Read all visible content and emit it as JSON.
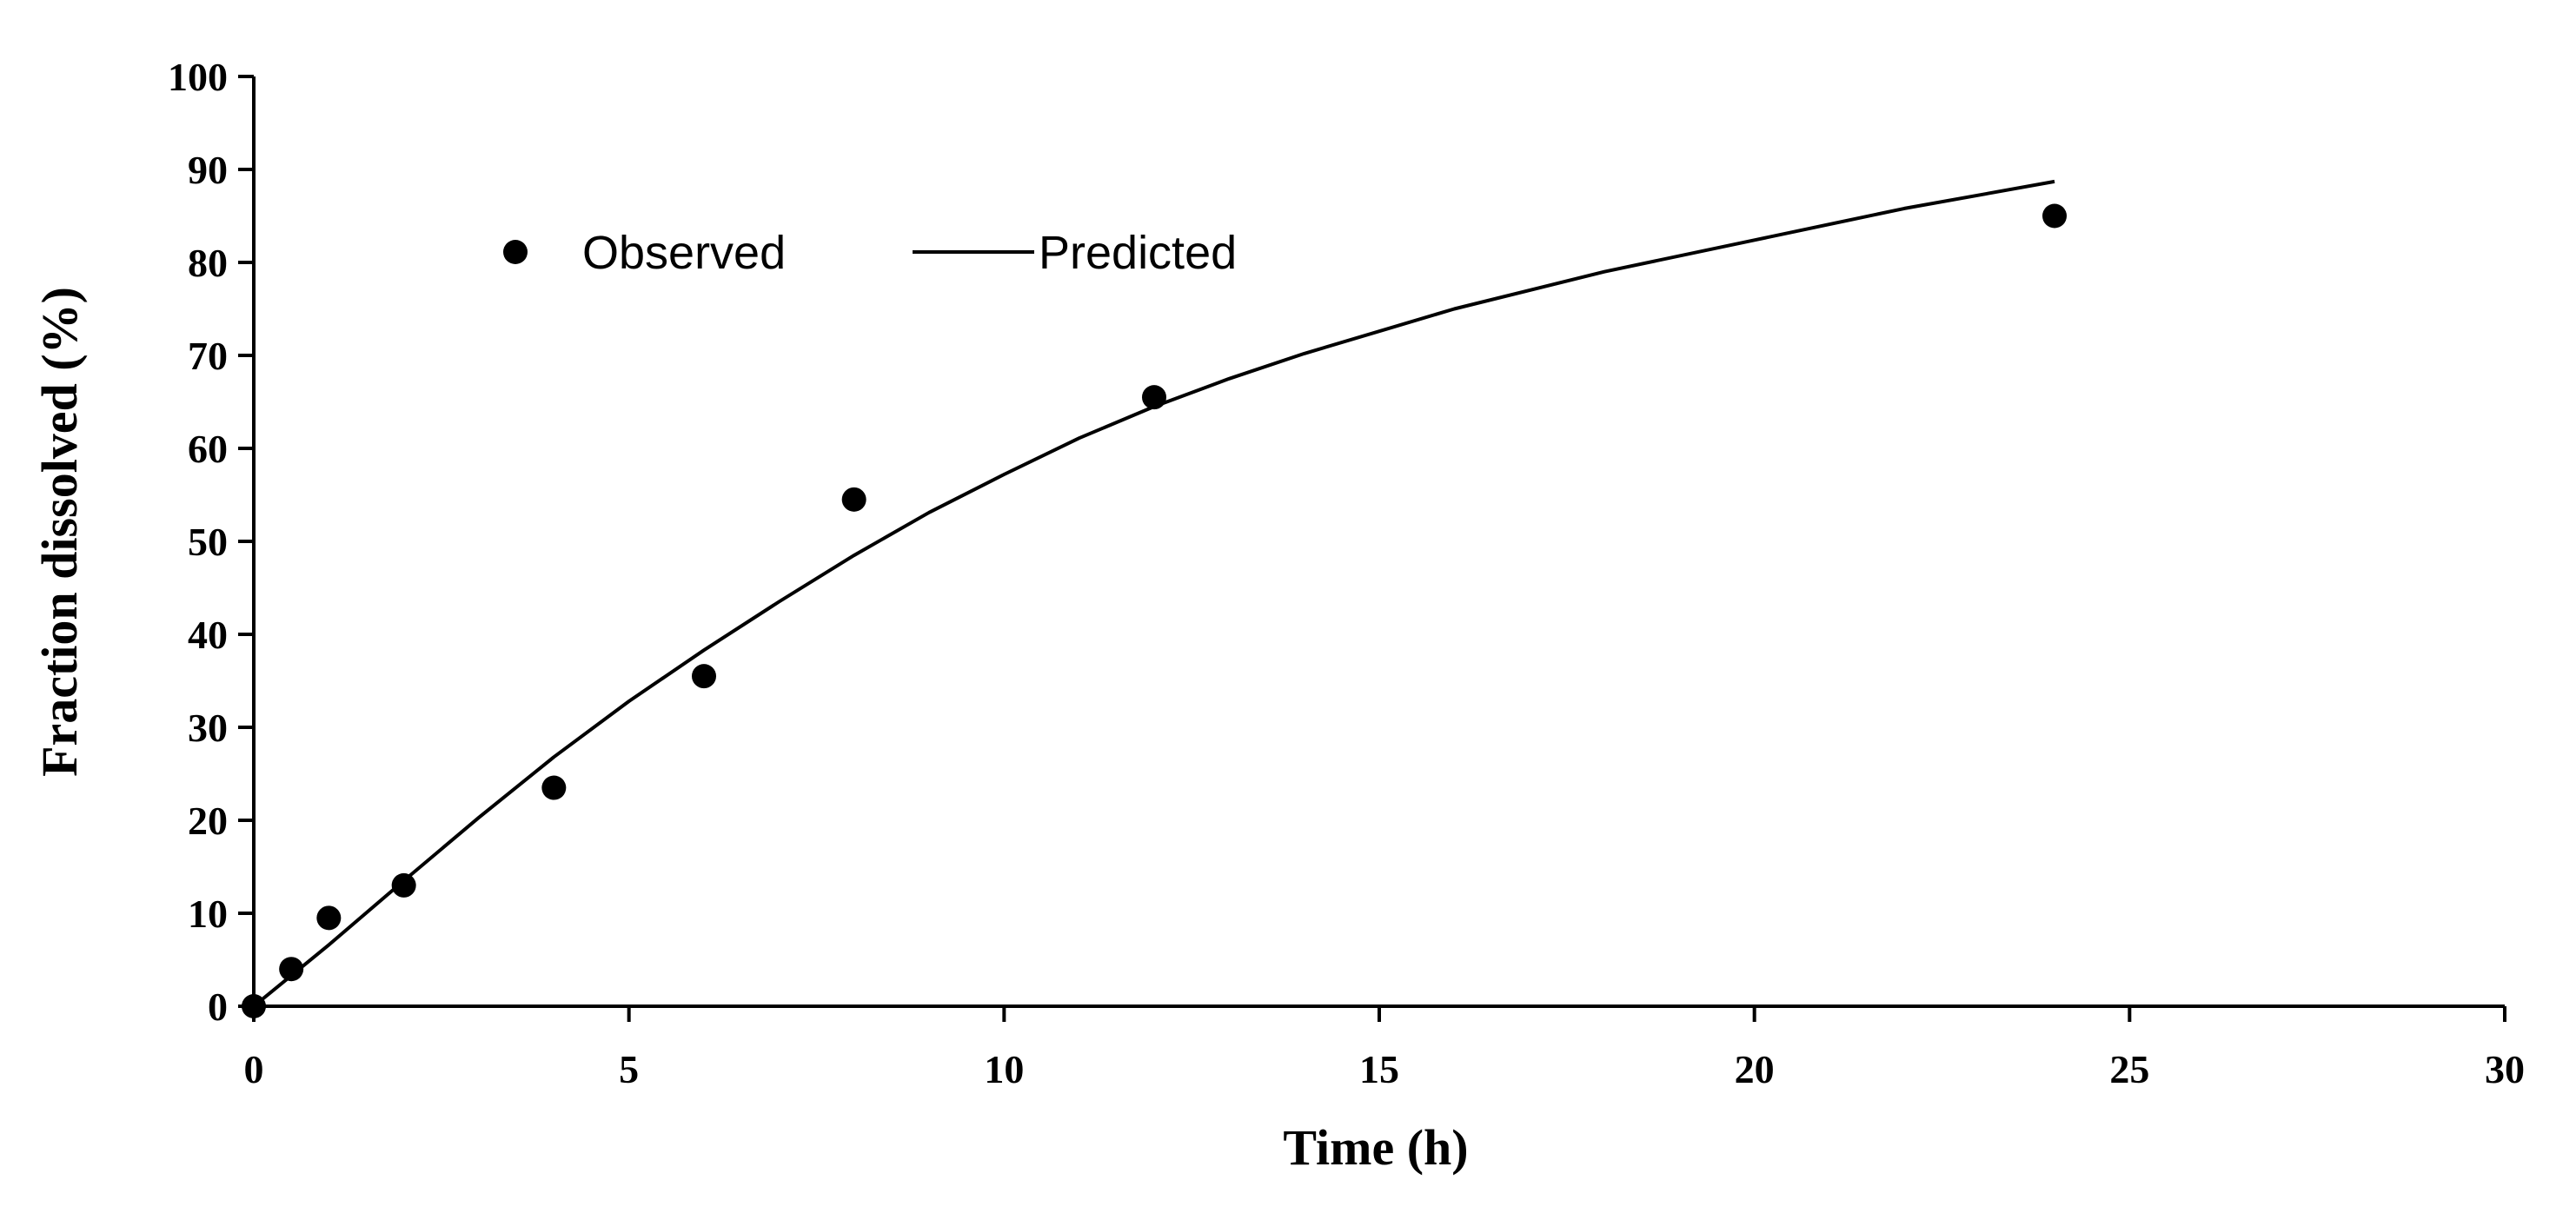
{
  "chart_data": {
    "type": "scatter",
    "title": "",
    "xlabel": "Time (h)",
    "ylabel": "Fraction dissolved (%)",
    "xlim": [
      0,
      30
    ],
    "ylim": [
      0,
      100
    ],
    "xticks": [
      "0",
      "5",
      "10",
      "15",
      "20",
      "25",
      "30"
    ],
    "yticks": [
      "0",
      "10",
      "20",
      "30",
      "40",
      "50",
      "60",
      "70",
      "80",
      "90",
      "100"
    ],
    "grid": false,
    "legend_position": "top-left",
    "series": [
      {
        "name": "Observed",
        "kind": "markers",
        "color": "#000000",
        "x": [
          0,
          0.5,
          1,
          2,
          4,
          6,
          8,
          12,
          24
        ],
        "y": [
          0,
          4,
          9.5,
          13,
          23.5,
          35.5,
          54.5,
          65.5,
          85
        ]
      },
      {
        "name": "Predicted",
        "kind": "line",
        "color": "#000000",
        "x": [
          0,
          0.5,
          1,
          2,
          3,
          4,
          5,
          6,
          7,
          8,
          9,
          10,
          11,
          12,
          13,
          14,
          16,
          18,
          20,
          22,
          24
        ],
        "y": [
          0,
          3.3,
          6.6,
          13.5,
          20.3,
          26.8,
          32.8,
          38.3,
          43.5,
          48.5,
          53.1,
          57.2,
          61.1,
          64.5,
          67.5,
          70.2,
          75,
          79,
          82.4,
          85.8,
          88.7
        ]
      }
    ]
  }
}
